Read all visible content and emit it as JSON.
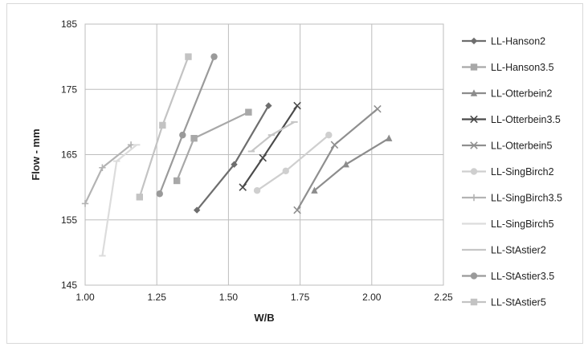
{
  "chart_data": {
    "type": "line",
    "title": "",
    "xlabel": "W/B",
    "ylabel": "Flow - mm",
    "xlim": [
      1.0,
      2.25
    ],
    "ylim": [
      145,
      185
    ],
    "x_ticks": [
      "1.00",
      "1.25",
      "1.50",
      "1.75",
      "2.00",
      "2.25"
    ],
    "y_ticks": [
      "145",
      "155",
      "165",
      "175",
      "185"
    ],
    "grid": true,
    "legend_position": "right",
    "series": [
      {
        "name": "LL-Hanson2",
        "color": "#6e6e6e",
        "marker": "diamond",
        "points": [
          [
            1.39,
            156.5
          ],
          [
            1.52,
            163.5
          ],
          [
            1.64,
            172.5
          ]
        ]
      },
      {
        "name": "LL-Hanson3.5",
        "color": "#a8a8a8",
        "marker": "square",
        "points": [
          [
            1.32,
            161.0
          ],
          [
            1.38,
            167.5
          ],
          [
            1.57,
            171.5
          ]
        ]
      },
      {
        "name": "LL-Otterbein2",
        "color": "#8c8c8c",
        "marker": "triangle",
        "points": [
          [
            1.8,
            159.5
          ],
          [
            1.91,
            163.5
          ],
          [
            2.06,
            167.5
          ]
        ]
      },
      {
        "name": "LL-Otterbein3.5",
        "color": "#4a4a4a",
        "marker": "x",
        "points": [
          [
            1.55,
            160.0
          ],
          [
            1.62,
            164.5
          ],
          [
            1.74,
            172.5
          ]
        ]
      },
      {
        "name": "LL-Otterbein5",
        "color": "#8f8f8f",
        "marker": "x",
        "points": [
          [
            1.74,
            156.5
          ],
          [
            1.87,
            166.5
          ],
          [
            2.02,
            172.0
          ]
        ]
      },
      {
        "name": "LL-SingBirch2",
        "color": "#cfcfcf",
        "marker": "circle",
        "points": [
          [
            1.6,
            159.5
          ],
          [
            1.7,
            162.5
          ],
          [
            1.85,
            168.0
          ]
        ]
      },
      {
        "name": "LL-SingBirch3.5",
        "color": "#b3b3b3",
        "marker": "plus",
        "points": [
          [
            1.0,
            157.5
          ],
          [
            1.06,
            163.0
          ],
          [
            1.16,
            166.5
          ]
        ]
      },
      {
        "name": "LL-SingBirch5",
        "color": "#dcdcdc",
        "marker": "dash",
        "points": [
          [
            1.06,
            149.5
          ],
          [
            1.11,
            164.0
          ],
          [
            1.18,
            166.5
          ]
        ]
      },
      {
        "name": "LL-StAstier2",
        "color": "#c6c6c6",
        "marker": "dash",
        "points": [
          [
            1.58,
            165.5
          ],
          [
            1.65,
            168.0
          ],
          [
            1.73,
            170.0
          ]
        ]
      },
      {
        "name": "LL-StAstier3.5",
        "color": "#9a9a9a",
        "marker": "circle",
        "points": [
          [
            1.26,
            159.0
          ],
          [
            1.34,
            168.0
          ],
          [
            1.45,
            180.0
          ]
        ]
      },
      {
        "name": "LL-StAstier5",
        "color": "#c3c3c3",
        "marker": "square",
        "points": [
          [
            1.19,
            158.5
          ],
          [
            1.27,
            169.5
          ],
          [
            1.36,
            180.0
          ]
        ]
      }
    ]
  }
}
